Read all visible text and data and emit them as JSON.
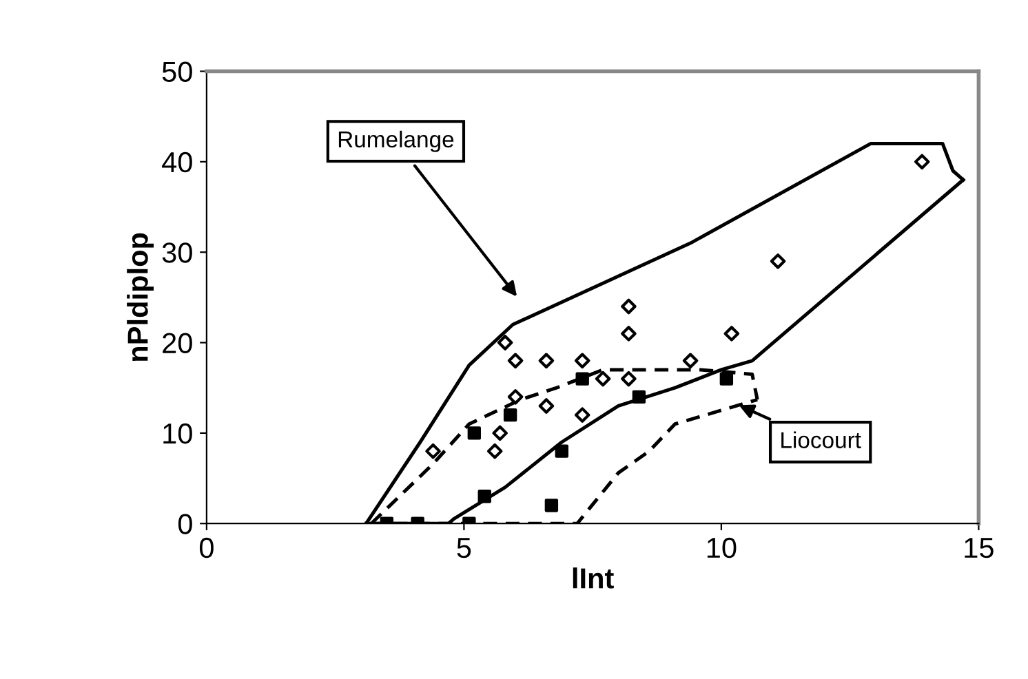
{
  "chart_data": {
    "type": "scatter",
    "xlabel": "lInt",
    "ylabel": "nPldiplop",
    "xlim": [
      0,
      15
    ],
    "xticks": [
      0,
      5,
      10,
      15
    ],
    "ylim": [
      0,
      50
    ],
    "yticks": [
      0,
      10,
      20,
      30,
      40,
      50
    ],
    "grid": false,
    "legend": false,
    "series": [
      {
        "marker": "diamond",
        "color": "#000000",
        "x": [
          5.8,
          6.0,
          6.6,
          7.3,
          8.2,
          8.2,
          7.7,
          8.2,
          6.6,
          7.3,
          5.7,
          5.6,
          4.4,
          6.0,
          13.9,
          11.1,
          10.2,
          9.4
        ],
        "values": [
          20,
          18,
          18,
          18,
          24,
          21,
          16,
          16,
          13,
          12,
          10,
          8,
          8,
          14,
          40,
          29,
          21,
          18
        ]
      },
      {
        "marker": "square",
        "color": "#000000",
        "x": [
          5.2,
          5.9,
          7.3,
          6.9,
          5.4,
          6.7,
          8.4,
          3.5,
          4.1,
          5.1,
          10.1
        ],
        "values": [
          10,
          12,
          16,
          8,
          3,
          2,
          14,
          0,
          0,
          0,
          16
        ]
      },
      {
        "type": "line",
        "line_style": "solid",
        "color": "#000000",
        "x": [
          3.1,
          4.15,
          5.1,
          5.95,
          9.4,
          12.9,
          14.3,
          14.5,
          14.7
        ],
        "values": [
          0,
          9,
          17.5,
          22,
          31,
          42,
          42,
          39,
          38
        ]
      },
      {
        "type": "line",
        "line_style": "solid",
        "color": "#000000",
        "x": [
          3.1,
          4.7,
          4.8,
          5.8,
          6.9,
          8.0,
          9.1,
          10.0,
          10.6,
          14.7
        ],
        "values": [
          0,
          0,
          0.5,
          4,
          9,
          13,
          15,
          17,
          18,
          38
        ]
      },
      {
        "type": "line",
        "line_style": "dashed",
        "color": "#000000",
        "x": [
          3.2,
          4.4,
          5.1,
          6.1,
          6.8,
          7.7,
          9.6,
          10.6,
          10.7
        ],
        "values": [
          0,
          6.6,
          11,
          13.7,
          15,
          17,
          17,
          16.5,
          13.7
        ]
      },
      {
        "type": "line",
        "line_style": "dashed",
        "color": "#000000",
        "x": [
          3.2,
          7.2,
          7.7,
          8.0,
          8.6,
          9.1,
          10.7
        ],
        "values": [
          0,
          0,
          3.5,
          5.6,
          8,
          11,
          13.7
        ]
      }
    ],
    "annotations": [
      "Rumelange",
      "Liocourt"
    ]
  }
}
